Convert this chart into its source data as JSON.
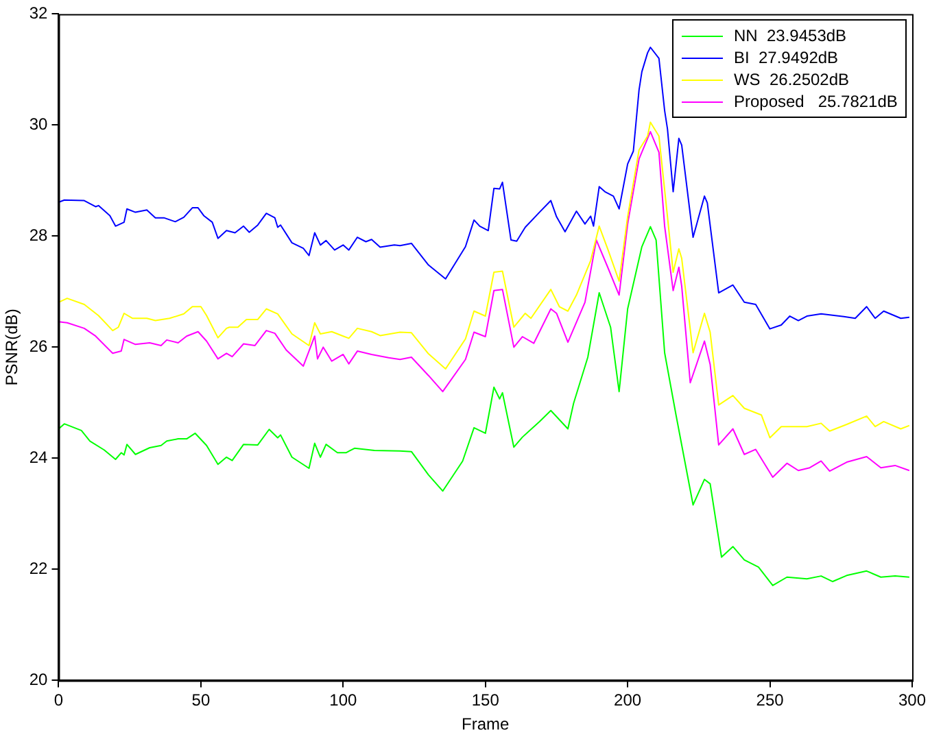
{
  "chart_data": {
    "type": "line",
    "xlabel": "Frame",
    "ylabel": "PSNR(dB)",
    "xlim": [
      0,
      300
    ],
    "xticks": [
      0,
      50,
      100,
      150,
      200,
      250,
      300
    ],
    "ylim": [
      20,
      32
    ],
    "yticks": [
      20,
      22,
      24,
      26,
      28,
      30,
      32
    ],
    "legend": "top right",
    "marker": "none",
    "line_style": "solid",
    "series": [
      {
        "name": "NN  23.9453dB",
        "color": "#00ff00",
        "x": [
          0,
          2,
          8,
          11,
          16,
          20,
          22,
          23,
          24,
          27,
          32,
          36,
          38,
          42,
          45,
          48,
          52,
          56,
          59,
          61,
          65,
          70,
          74,
          77,
          78,
          82,
          88,
          90,
          92,
          94,
          98,
          101,
          104,
          111,
          120,
          124,
          130,
          135,
          142,
          146,
          150,
          153,
          155,
          156,
          160,
          163,
          169,
          173,
          179,
          181,
          186,
          190,
          194,
          197,
          200,
          205,
          208,
          210,
          213,
          217,
          223,
          227,
          229,
          233,
          237,
          241,
          246,
          251,
          256,
          263,
          268,
          272,
          277,
          284,
          289,
          294,
          299
        ],
        "values": [
          24.53,
          24.62,
          24.5,
          24.31,
          24.15,
          23.98,
          24.1,
          24.06,
          24.25,
          24.07,
          24.19,
          24.23,
          24.31,
          24.35,
          24.35,
          24.45,
          24.23,
          23.89,
          24.02,
          23.96,
          24.25,
          24.24,
          24.52,
          24.37,
          24.42,
          24.02,
          23.82,
          24.27,
          24.02,
          24.25,
          24.1,
          24.1,
          24.18,
          24.14,
          24.13,
          24.12,
          23.7,
          23.41,
          23.95,
          24.55,
          24.45,
          25.28,
          25.07,
          25.18,
          24.2,
          24.38,
          24.66,
          24.86,
          24.53,
          24.99,
          25.82,
          26.98,
          26.36,
          25.2,
          26.69,
          27.81,
          28.17,
          27.93,
          25.9,
          24.78,
          23.16,
          23.62,
          23.54,
          22.22,
          22.41,
          22.17,
          22.04,
          21.71,
          21.86,
          21.83,
          21.88,
          21.78,
          21.89,
          21.97,
          21.86,
          21.88,
          21.86
        ]
      },
      {
        "name": "BI  27.9492dB",
        "color": "#0000ff",
        "x": [
          0,
          2,
          9,
          13,
          14,
          18,
          20,
          23,
          24,
          27,
          31,
          34,
          37,
          41,
          44,
          47,
          49,
          51,
          54,
          56,
          59,
          62,
          65,
          67,
          70,
          73,
          76,
          77,
          78,
          82,
          86,
          88,
          90,
          92,
          94,
          97,
          100,
          102,
          105,
          108,
          110,
          113,
          118,
          120,
          124,
          130,
          136,
          143,
          146,
          148,
          151,
          153,
          155,
          156,
          159,
          161,
          164,
          169,
          173,
          175,
          178,
          182,
          185,
          187,
          188,
          190,
          192,
          195,
          197,
          200,
          202,
          204,
          205,
          207,
          208,
          211,
          213,
          214,
          216,
          218,
          219,
          223,
          227,
          228,
          232,
          237,
          241,
          245,
          250,
          254,
          257,
          260,
          263,
          268,
          276,
          280,
          284,
          287,
          290,
          296,
          299
        ],
        "values": [
          28.61,
          28.65,
          28.64,
          28.53,
          28.55,
          28.37,
          28.18,
          28.25,
          28.49,
          28.43,
          28.47,
          28.33,
          28.33,
          28.26,
          28.34,
          28.51,
          28.51,
          28.37,
          28.25,
          27.96,
          28.1,
          28.06,
          28.18,
          28.07,
          28.2,
          28.41,
          28.33,
          28.16,
          28.2,
          27.88,
          27.78,
          27.65,
          28.06,
          27.84,
          27.92,
          27.75,
          27.84,
          27.75,
          27.98,
          27.9,
          27.94,
          27.8,
          27.84,
          27.83,
          27.87,
          27.48,
          27.23,
          27.81,
          28.29,
          28.18,
          28.1,
          28.86,
          28.85,
          28.97,
          27.93,
          27.91,
          28.16,
          28.43,
          28.64,
          28.35,
          28.08,
          28.45,
          28.22,
          28.36,
          28.18,
          28.89,
          28.8,
          28.72,
          28.49,
          29.3,
          29.53,
          30.63,
          30.96,
          31.3,
          31.4,
          31.2,
          30.26,
          29.93,
          28.8,
          29.76,
          29.64,
          27.98,
          28.72,
          28.6,
          26.98,
          27.12,
          26.81,
          26.77,
          26.33,
          26.4,
          26.56,
          26.48,
          26.56,
          26.6,
          26.55,
          26.52,
          26.73,
          26.52,
          26.65,
          26.52,
          26.54
        ]
      },
      {
        "name": "WS  26.2502dB",
        "color": "#ffff00",
        "x": [
          0,
          3,
          9,
          14,
          19,
          21,
          23,
          26,
          31,
          34,
          39,
          44,
          47,
          50,
          52,
          56,
          59,
          60,
          63,
          66,
          70,
          73,
          77,
          82,
          88,
          90,
          92,
          96,
          100,
          102,
          105,
          110,
          113,
          120,
          124,
          130,
          136,
          143,
          146,
          150,
          153,
          156,
          160,
          164,
          166,
          173,
          176,
          179,
          182,
          187,
          190,
          193,
          197,
          200,
          204,
          207,
          208,
          211,
          214,
          216,
          218,
          219,
          223,
          227,
          229,
          232,
          237,
          241,
          247,
          250,
          254,
          259,
          263,
          268,
          271,
          277,
          284,
          287,
          290,
          296,
          299
        ],
        "values": [
          26.81,
          26.88,
          26.77,
          26.57,
          26.3,
          26.36,
          26.61,
          26.52,
          26.52,
          26.48,
          26.52,
          26.6,
          26.73,
          26.73,
          26.57,
          26.17,
          26.34,
          26.36,
          26.36,
          26.5,
          26.5,
          26.69,
          26.6,
          26.24,
          26.03,
          26.44,
          26.24,
          26.28,
          26.2,
          26.16,
          26.34,
          26.28,
          26.21,
          26.27,
          26.26,
          25.88,
          25.61,
          26.15,
          26.65,
          26.56,
          27.35,
          27.37,
          26.36,
          26.61,
          26.52,
          27.04,
          26.73,
          26.65,
          26.94,
          27.56,
          28.18,
          27.77,
          27.19,
          28.35,
          29.55,
          29.8,
          30.05,
          29.8,
          28.35,
          27.35,
          27.77,
          27.6,
          25.9,
          26.61,
          26.27,
          24.96,
          25.13,
          24.9,
          24.78,
          24.37,
          24.57,
          24.57,
          24.57,
          24.63,
          24.49,
          24.61,
          24.76,
          24.57,
          24.66,
          24.53,
          24.59
        ]
      },
      {
        "name": "Proposed   25.7821dB",
        "color": "#ff00ff",
        "x": [
          0,
          3,
          9,
          13,
          19,
          22,
          23,
          27,
          32,
          36,
          38,
          42,
          45,
          49,
          52,
          56,
          59,
          61,
          65,
          69,
          73,
          76,
          80,
          86,
          90,
          91,
          93,
          96,
          100,
          102,
          105,
          110,
          116,
          120,
          124,
          130,
          135,
          143,
          146,
          150,
          153,
          156,
          160,
          163,
          167,
          173,
          175,
          179,
          185,
          189,
          193,
          197,
          200,
          204,
          208,
          211,
          213,
          216,
          218,
          219,
          222,
          227,
          229,
          232,
          237,
          241,
          245,
          251,
          256,
          260,
          264,
          268,
          271,
          277,
          284,
          289,
          294,
          299
        ],
        "values": [
          26.46,
          26.44,
          26.34,
          26.2,
          25.89,
          25.93,
          26.14,
          26.05,
          26.08,
          26.03,
          26.13,
          26.08,
          26.2,
          26.28,
          26.11,
          25.79,
          25.89,
          25.83,
          26.06,
          26.03,
          26.3,
          26.25,
          25.95,
          25.66,
          26.2,
          25.79,
          26.0,
          25.75,
          25.87,
          25.7,
          25.93,
          25.87,
          25.81,
          25.78,
          25.82,
          25.49,
          25.2,
          25.78,
          26.27,
          26.19,
          27.02,
          27.04,
          26.0,
          26.19,
          26.07,
          26.69,
          26.61,
          26.09,
          26.81,
          27.93,
          27.44,
          26.94,
          28.22,
          29.39,
          29.88,
          29.51,
          28.18,
          27.02,
          27.44,
          27.1,
          25.36,
          26.11,
          25.69,
          24.24,
          24.53,
          24.07,
          24.16,
          23.66,
          23.91,
          23.78,
          23.83,
          23.95,
          23.77,
          23.93,
          24.03,
          23.83,
          23.87,
          23.78
        ]
      }
    ]
  }
}
